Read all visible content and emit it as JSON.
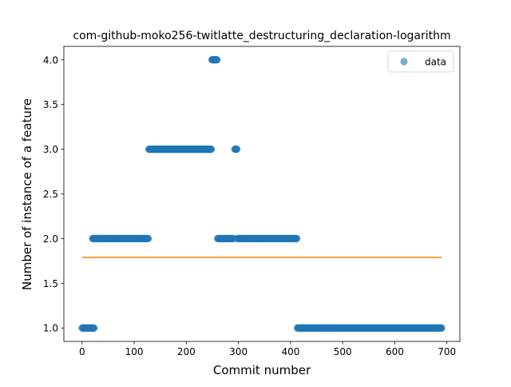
{
  "chart_data": {
    "type": "scatter",
    "title": "com-github-moko256-twitlatte_destructuring_declaration-logarithm",
    "xlabel": "Commit number",
    "ylabel": "Number of instance of a feature",
    "xlim": [
      -35,
      725
    ],
    "ylim": [
      0.85,
      4.15
    ],
    "xticks": [
      0,
      100,
      200,
      300,
      400,
      500,
      600,
      700
    ],
    "xtick_labels": [
      "0",
      "100",
      "200",
      "300",
      "400",
      "500",
      "600",
      "700"
    ],
    "yticks": [
      1.0,
      1.5,
      2.0,
      2.5,
      3.0,
      3.5,
      4.0
    ],
    "ytick_labels": [
      "1.0",
      "1.5",
      "2.0",
      "2.5",
      "3.0",
      "3.5",
      "4.0"
    ],
    "grid": false,
    "legend": {
      "position": "top-right",
      "entries": [
        {
          "label": "data",
          "color": "#1f77b4",
          "marker": "circle"
        }
      ]
    },
    "series": [
      {
        "name": "data",
        "kind": "scatter",
        "color": "#1f77b4",
        "alpha": 0.6,
        "segments": [
          {
            "x_from": 0,
            "x_to": 23,
            "y": 1
          },
          {
            "x_from": 20,
            "x_to": 127,
            "y": 2
          },
          {
            "x_from": 128,
            "x_to": 248,
            "y": 3
          },
          {
            "x_from": 249,
            "x_to": 259,
            "y": 4
          },
          {
            "x_from": 260,
            "x_to": 290,
            "y": 2
          },
          {
            "x_from": 293,
            "x_to": 297,
            "y": 3
          },
          {
            "x_from": 298,
            "x_to": 412,
            "y": 2
          },
          {
            "x_from": 413,
            "x_to": 690,
            "y": 1
          }
        ]
      },
      {
        "kind": "line",
        "color": "#ff7f0e",
        "x": [
          0,
          690
        ],
        "y": [
          1.79,
          1.79
        ]
      }
    ]
  }
}
